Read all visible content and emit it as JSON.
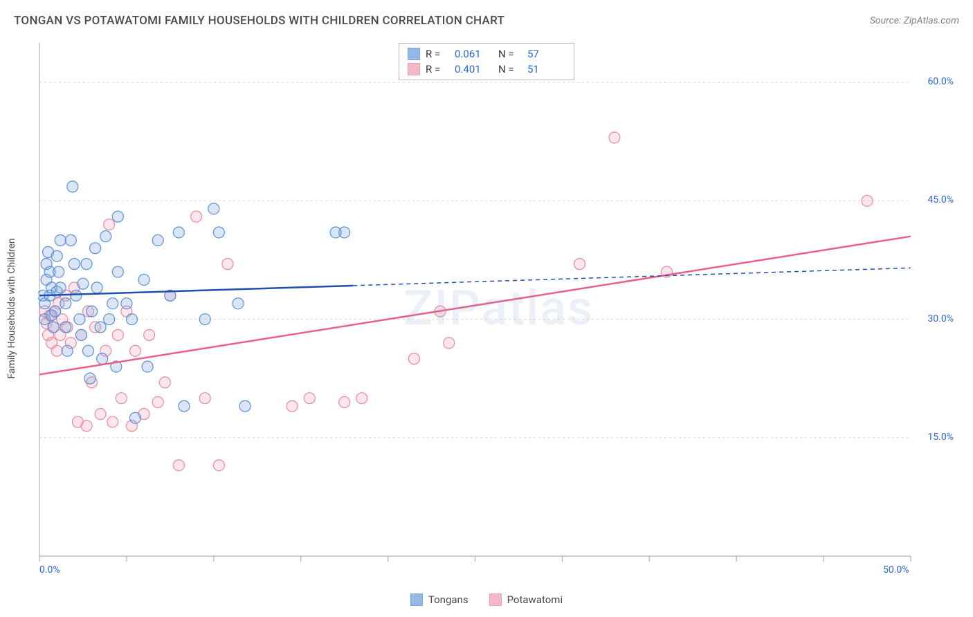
{
  "meta": {
    "title": "TONGAN VS POTAWATOMI FAMILY HOUSEHOLDS WITH CHILDREN CORRELATION CHART",
    "source_prefix": "Source: ",
    "source_name": "ZipAtlas.com",
    "watermark": "ZIPatlas"
  },
  "chart": {
    "type": "scatter",
    "y_axis_label": "Family Households with Children",
    "background_color": "#ffffff",
    "grid_color": "#d8d8d8",
    "axis_line_color": "#b0b0b0",
    "x": {
      "min": 0,
      "max": 50,
      "ticks": [
        0,
        5,
        10,
        15,
        20,
        25,
        30,
        35,
        40,
        45,
        50
      ],
      "labeled_ticks": [
        {
          "v": 0,
          "t": "0.0%"
        },
        {
          "v": 50,
          "t": "50.0%"
        }
      ]
    },
    "y": {
      "min": 0,
      "max": 65,
      "gridlines": [
        15,
        30,
        45,
        60
      ],
      "labels": [
        {
          "v": 15,
          "t": "15.0%"
        },
        {
          "v": 30,
          "t": "30.0%"
        },
        {
          "v": 45,
          "t": "45.0%"
        },
        {
          "v": 60,
          "t": "60.0%"
        }
      ]
    },
    "marker_radius": 8,
    "marker_stroke_width": 1.2,
    "marker_fill_opacity": 0.28
  },
  "series": {
    "tongans": {
      "label": "Tongans",
      "fill": "#7ba7e0",
      "stroke": "#5a8fd6",
      "r_value": "0.061",
      "n_value": "57",
      "trend": {
        "y_at_xmin": 33.0,
        "y_at_xmax": 36.5,
        "solid_until_x": 18,
        "stroke": "#1f4fb0",
        "width": 2.5,
        "dash": "6 5"
      },
      "points": [
        [
          0.2,
          33
        ],
        [
          0.3,
          30
        ],
        [
          0.3,
          32
        ],
        [
          0.4,
          35
        ],
        [
          0.4,
          37
        ],
        [
          0.5,
          38.5
        ],
        [
          0.6,
          33
        ],
        [
          0.6,
          36
        ],
        [
          0.7,
          30.5
        ],
        [
          0.7,
          34
        ],
        [
          0.8,
          29
        ],
        [
          0.9,
          31
        ],
        [
          1.0,
          38
        ],
        [
          1.0,
          33.5
        ],
        [
          1.1,
          36
        ],
        [
          1.2,
          40
        ],
        [
          1.2,
          34
        ],
        [
          1.5,
          29
        ],
        [
          1.5,
          32
        ],
        [
          1.6,
          26
        ],
        [
          1.8,
          40
        ],
        [
          1.9,
          46.8
        ],
        [
          2.0,
          37
        ],
        [
          2.1,
          33
        ],
        [
          2.3,
          30
        ],
        [
          2.4,
          28
        ],
        [
          2.5,
          34.5
        ],
        [
          2.7,
          37
        ],
        [
          2.8,
          26
        ],
        [
          2.9,
          22.5
        ],
        [
          3.0,
          31
        ],
        [
          3.2,
          39
        ],
        [
          3.3,
          34
        ],
        [
          3.5,
          29
        ],
        [
          3.6,
          25
        ],
        [
          3.8,
          40.5
        ],
        [
          4.0,
          30
        ],
        [
          4.2,
          32
        ],
        [
          4.4,
          24
        ],
        [
          4.5,
          36
        ],
        [
          4.5,
          43
        ],
        [
          5.0,
          32
        ],
        [
          5.3,
          30
        ],
        [
          5.5,
          17.5
        ],
        [
          6.0,
          35
        ],
        [
          6.2,
          24
        ],
        [
          6.8,
          40
        ],
        [
          7.5,
          33
        ],
        [
          8.0,
          41
        ],
        [
          8.3,
          19
        ],
        [
          9.5,
          30
        ],
        [
          10.0,
          44
        ],
        [
          10.3,
          41
        ],
        [
          11.4,
          32
        ],
        [
          11.8,
          19
        ],
        [
          17.0,
          41
        ],
        [
          17.5,
          41
        ]
      ]
    },
    "potawatomi": {
      "label": "Potawatomi",
      "fill": "#f2a7bb",
      "stroke": "#ea87a2",
      "r_value": "0.401",
      "n_value": "51",
      "trend": {
        "y_at_xmin": 23.0,
        "y_at_xmax": 40.5,
        "solid_until_x": 50,
        "stroke": "#ea5f87",
        "width": 2.5,
        "dash": ""
      },
      "points": [
        [
          0.3,
          31
        ],
        [
          0.4,
          29.5
        ],
        [
          0.5,
          28
        ],
        [
          0.6,
          30.5
        ],
        [
          0.7,
          27
        ],
        [
          0.8,
          29
        ],
        [
          0.9,
          31
        ],
        [
          1.0,
          26
        ],
        [
          1.1,
          32
        ],
        [
          1.2,
          28
        ],
        [
          1.3,
          30
        ],
        [
          1.5,
          33
        ],
        [
          1.6,
          29
        ],
        [
          1.8,
          27
        ],
        [
          2.0,
          34
        ],
        [
          2.2,
          17
        ],
        [
          2.4,
          28
        ],
        [
          2.7,
          16.5
        ],
        [
          2.8,
          31
        ],
        [
          3.0,
          22
        ],
        [
          3.2,
          29
        ],
        [
          3.5,
          18
        ],
        [
          3.8,
          26
        ],
        [
          4.0,
          42
        ],
        [
          4.2,
          17
        ],
        [
          4.5,
          28
        ],
        [
          4.7,
          20
        ],
        [
          5.0,
          31
        ],
        [
          5.3,
          16.5
        ],
        [
          5.5,
          26
        ],
        [
          6.0,
          18
        ],
        [
          6.3,
          28
        ],
        [
          6.8,
          19.5
        ],
        [
          7.2,
          22
        ],
        [
          7.5,
          33
        ],
        [
          8.0,
          11.5
        ],
        [
          9.0,
          43
        ],
        [
          9.5,
          20
        ],
        [
          10.3,
          11.5
        ],
        [
          10.8,
          37
        ],
        [
          14.5,
          19
        ],
        [
          15.5,
          20
        ],
        [
          17.5,
          19.5
        ],
        [
          18.5,
          20
        ],
        [
          21.5,
          25
        ],
        [
          23.0,
          31
        ],
        [
          23.5,
          27
        ],
        [
          31.0,
          37
        ],
        [
          33.0,
          53
        ],
        [
          36.0,
          36
        ],
        [
          47.5,
          45
        ]
      ]
    }
  },
  "legend_top": {
    "rows": [
      {
        "swatch_series": "tongans",
        "r_label": "R =",
        "n_label": "N ="
      },
      {
        "swatch_series": "potawatomi",
        "r_label": "R =",
        "n_label": "N ="
      }
    ]
  },
  "legend_bottom": [
    {
      "series": "tongans"
    },
    {
      "series": "potawatomi"
    }
  ]
}
